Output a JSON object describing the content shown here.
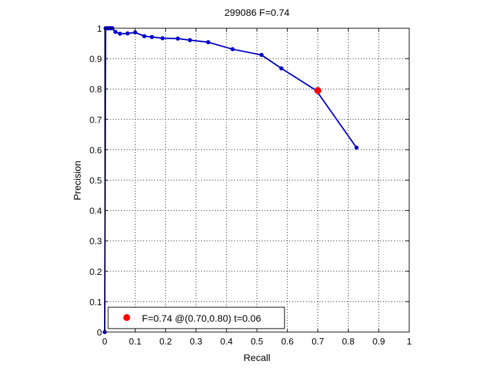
{
  "chart_data": {
    "type": "line",
    "title": "299086 F=0.74",
    "xlabel": "Recall",
    "ylabel": "Precision",
    "xlim": [
      0,
      1
    ],
    "ylim": [
      0,
      1
    ],
    "grid": true,
    "legend_position": "bottom-left",
    "xticks": [
      "0",
      "0.1",
      "0.2",
      "0.3",
      "0.4",
      "0.5",
      "0.6",
      "0.7",
      "0.8",
      "0.9",
      "1"
    ],
    "yticks": [
      "0",
      "0.1",
      "0.2",
      "0.3",
      "0.4",
      "0.5",
      "0.6",
      "0.7",
      "0.8",
      "0.9",
      "1"
    ],
    "series": [
      {
        "color": "#0000cc",
        "x": [
          0.0,
          0.003,
          0.008,
          0.012,
          0.016,
          0.02,
          0.025,
          0.035,
          0.05,
          0.075,
          0.1,
          0.13,
          0.155,
          0.19,
          0.24,
          0.28,
          0.34,
          0.42,
          0.515,
          0.58,
          0.695,
          0.827
        ],
        "y": [
          0.0,
          1.0,
          1.0,
          1.0,
          1.0,
          1.0,
          1.0,
          0.988,
          0.982,
          0.983,
          0.986,
          0.974,
          0.971,
          0.967,
          0.966,
          0.961,
          0.954,
          0.931,
          0.912,
          0.868,
          0.795,
          0.607
        ]
      }
    ],
    "highlight": {
      "x": 0.7,
      "y": 0.795,
      "color": "#ff0000",
      "label": "F=0.74 @(0.70,0.80) t=0.06"
    }
  }
}
